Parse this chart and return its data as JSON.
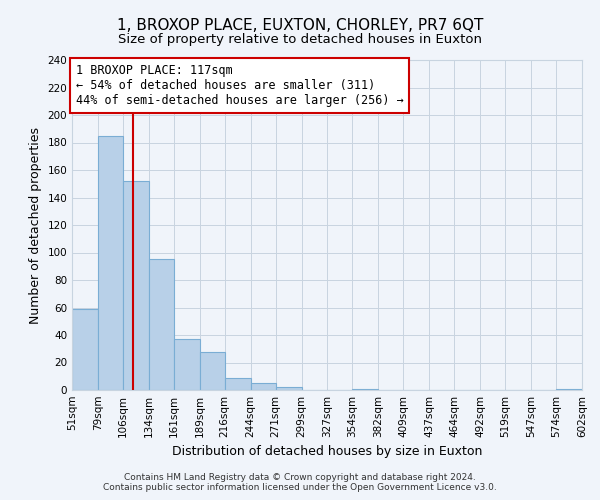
{
  "title": "1, BROXOP PLACE, EUXTON, CHORLEY, PR7 6QT",
  "subtitle": "Size of property relative to detached houses in Euxton",
  "xlabel": "Distribution of detached houses by size in Euxton",
  "ylabel": "Number of detached properties",
  "bar_edges": [
    51,
    79,
    106,
    134,
    161,
    189,
    216,
    244,
    271,
    299,
    327,
    354,
    382,
    409,
    437,
    464,
    492,
    519,
    547,
    574,
    602
  ],
  "bar_heights": [
    59,
    185,
    152,
    95,
    37,
    28,
    9,
    5,
    2,
    0,
    0,
    1,
    0,
    0,
    0,
    0,
    0,
    0,
    0,
    1
  ],
  "bar_color": "#b8d0e8",
  "bar_edge_color": "#7aadd4",
  "reference_line_x": 117,
  "reference_line_color": "#cc0000",
  "annotation_lines": [
    "1 BROXOP PLACE: 117sqm",
    "← 54% of detached houses are smaller (311)",
    "44% of semi-detached houses are larger (256) →"
  ],
  "ylim": [
    0,
    240
  ],
  "yticks": [
    0,
    20,
    40,
    60,
    80,
    100,
    120,
    140,
    160,
    180,
    200,
    220,
    240
  ],
  "tick_labels": [
    "51sqm",
    "79sqm",
    "106sqm",
    "134sqm",
    "161sqm",
    "189sqm",
    "216sqm",
    "244sqm",
    "271sqm",
    "299sqm",
    "327sqm",
    "354sqm",
    "382sqm",
    "409sqm",
    "437sqm",
    "464sqm",
    "492sqm",
    "519sqm",
    "547sqm",
    "574sqm",
    "602sqm"
  ],
  "footer_lines": [
    "Contains HM Land Registry data © Crown copyright and database right 2024.",
    "Contains public sector information licensed under the Open Government Licence v3.0."
  ],
  "fig_background_color": "#f0f4fa",
  "plot_background_color": "#f0f4fa",
  "grid_color": "#c8d4e0",
  "annotation_box_color": "#ffffff",
  "annotation_box_border": "#cc0000",
  "title_fontsize": 11,
  "subtitle_fontsize": 9.5,
  "axis_label_fontsize": 9,
  "tick_fontsize": 7.5,
  "annotation_fontsize": 8.5,
  "footer_fontsize": 6.5
}
